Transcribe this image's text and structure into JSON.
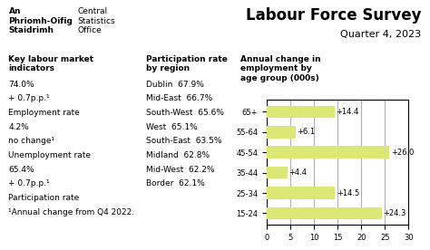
{
  "chart_data": {
    "type": "bar",
    "orientation": "horizontal",
    "title": "Labour Force Survey",
    "subtitle": "Quarter 4, 2023",
    "categories": [
      "65+",
      "55-64",
      "45-54",
      "35-44",
      "25-34",
      "15-24"
    ],
    "values": [
      14.4,
      6.1,
      26.0,
      4.4,
      14.5,
      24.3
    ],
    "value_labels": [
      "+14.4",
      "+6.1",
      "+26.0",
      "+4.4",
      "+14.5",
      "+24.3"
    ],
    "data_labels": true,
    "color": "#dce775",
    "xlim": [
      0,
      30
    ],
    "xticks": [
      0,
      5,
      10,
      15,
      20,
      25,
      30
    ],
    "grid": true,
    "annotations": [
      [
        "An\nPhriomh-Oifig\nStaidrimh",
        "Central\nStatistics\nOffice"
      ],
      [
        "Key labour market\nindicators",
        "74.0%",
        "+ 0.7p.p.¹",
        "Employment rate",
        "4.2%",
        "no change¹",
        "Unemployment rate",
        "65.4%",
        "+ 0.7p.p.¹",
        "Participation rate",
        "¹Annual change from Q4 2022."
      ],
      [
        "Participation rate\nby region",
        "Dublin  67.9%",
        "Mid-East  66.7%",
        "South-West  65.6%",
        "West  65.1%",
        "South-East  63.5%",
        "Midland  62.8%",
        "Mid-West  62.2%",
        "Border  62.1%"
      ],
      [
        "Annual change in\nemployment by\nage group (000s)"
      ]
    ]
  }
}
